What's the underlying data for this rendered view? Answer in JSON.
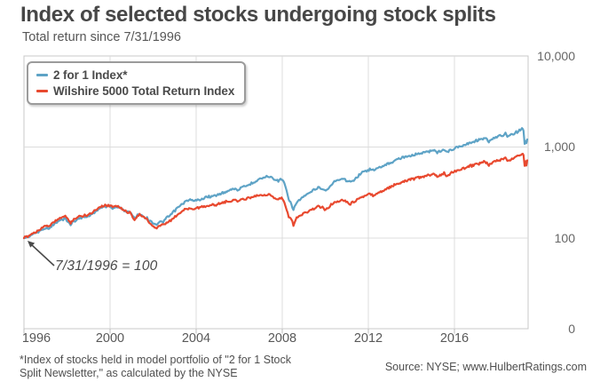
{
  "header": {
    "title": "Index of selected stocks undergoing stock splits",
    "subtitle": "Total return since 7/31/1996"
  },
  "legend": {
    "items": [
      {
        "label": "2 for 1 Index*",
        "color": "#5ea3c6"
      },
      {
        "label": "Wilshire 5000 Total Return Index",
        "color": "#e8492f"
      }
    ]
  },
  "annotation": {
    "text": "7/31/1996 = 100"
  },
  "footnote": {
    "line1": "*Index of stocks held in model portfolio of \"2 for 1 Stock",
    "line2": "Split Newsletter,\" as calculated by the NYSE"
  },
  "source": "Source: NYSE; www.HulbertRatings.com",
  "chart_data": {
    "type": "line",
    "title": "Index of selected stocks undergoing stock splits",
    "subtitle": "Total return since 7/31/1996",
    "base_note": "7/31/1996 = 100",
    "grid": true,
    "legend_position": "top-left",
    "x_axis": {
      "ticks": [
        1996,
        2000,
        2004,
        2008,
        2012,
        2016
      ],
      "tick_labels": [
        "1996",
        "2000",
        "2004",
        "2008",
        "2012",
        "2016"
      ],
      "start": 1996.58,
      "end": 2019.96
    },
    "y_axis": {
      "scale": "log",
      "tick_values": [
        10000,
        1000,
        100,
        0
      ],
      "tick_labels": [
        "10,000",
        "1,000",
        "100",
        "0"
      ],
      "position": "right"
    },
    "series": [
      {
        "name": "2 for 1 Index*",
        "color": "#5ea3c6",
        "points": [
          [
            1996.58,
            100
          ],
          [
            1996.75,
            103
          ],
          [
            1996.95,
            109
          ],
          [
            1997.15,
            114
          ],
          [
            1997.35,
            120
          ],
          [
            1997.55,
            130
          ],
          [
            1997.7,
            126
          ],
          [
            1997.9,
            138
          ],
          [
            1998.1,
            148
          ],
          [
            1998.3,
            158
          ],
          [
            1998.5,
            166
          ],
          [
            1998.63,
            150
          ],
          [
            1998.75,
            140
          ],
          [
            1998.9,
            154
          ],
          [
            1999.1,
            162
          ],
          [
            1999.3,
            168
          ],
          [
            1999.5,
            172
          ],
          [
            1999.7,
            180
          ],
          [
            1999.9,
            196
          ],
          [
            2000.1,
            212
          ],
          [
            2000.3,
            220
          ],
          [
            2000.5,
            226
          ],
          [
            2000.7,
            214
          ],
          [
            2000.9,
            218
          ],
          [
            2001.1,
            215
          ],
          [
            2001.3,
            198
          ],
          [
            2001.5,
            192
          ],
          [
            2001.72,
            165
          ],
          [
            2001.9,
            183
          ],
          [
            2002.05,
            180
          ],
          [
            2002.25,
            168
          ],
          [
            2002.45,
            155
          ],
          [
            2002.6,
            146
          ],
          [
            2002.75,
            143
          ],
          [
            2002.9,
            150
          ],
          [
            2003.05,
            153
          ],
          [
            2003.25,
            168
          ],
          [
            2003.45,
            185
          ],
          [
            2003.65,
            208
          ],
          [
            2003.85,
            228
          ],
          [
            2004.05,
            250
          ],
          [
            2004.25,
            262
          ],
          [
            2004.45,
            256
          ],
          [
            2004.65,
            262
          ],
          [
            2004.85,
            270
          ],
          [
            2005.05,
            280
          ],
          [
            2005.3,
            288
          ],
          [
            2005.55,
            296
          ],
          [
            2005.8,
            312
          ],
          [
            2006.05,
            332
          ],
          [
            2006.3,
            352
          ],
          [
            2006.5,
            340
          ],
          [
            2006.7,
            356
          ],
          [
            2006.9,
            372
          ],
          [
            2007.1,
            392
          ],
          [
            2007.3,
            420
          ],
          [
            2007.5,
            448
          ],
          [
            2007.7,
            462
          ],
          [
            2007.9,
            478
          ],
          [
            2008.1,
            465
          ],
          [
            2008.25,
            442
          ],
          [
            2008.4,
            430
          ],
          [
            2008.55,
            446
          ],
          [
            2008.68,
            400
          ],
          [
            2008.78,
            330
          ],
          [
            2008.88,
            262
          ],
          [
            2009.0,
            238
          ],
          [
            2009.1,
            206
          ],
          [
            2009.25,
            248
          ],
          [
            2009.45,
            272
          ],
          [
            2009.65,
            292
          ],
          [
            2009.85,
            315
          ],
          [
            2010.05,
            338
          ],
          [
            2010.25,
            362
          ],
          [
            2010.45,
            348
          ],
          [
            2010.6,
            332
          ],
          [
            2010.8,
            368
          ],
          [
            2011.0,
            415
          ],
          [
            2011.2,
            442
          ],
          [
            2011.4,
            455
          ],
          [
            2011.6,
            428
          ],
          [
            2011.75,
            408
          ],
          [
            2011.9,
            438
          ],
          [
            2012.1,
            480
          ],
          [
            2012.3,
            525
          ],
          [
            2012.5,
            555
          ],
          [
            2012.65,
            572
          ],
          [
            2012.8,
            558
          ],
          [
            2013.0,
            580
          ],
          [
            2013.2,
            612
          ],
          [
            2013.45,
            648
          ],
          [
            2013.7,
            688
          ],
          [
            2013.95,
            735
          ],
          [
            2014.2,
            778
          ],
          [
            2014.45,
            805
          ],
          [
            2014.7,
            822
          ],
          [
            2014.95,
            848
          ],
          [
            2015.2,
            878
          ],
          [
            2015.45,
            905
          ],
          [
            2015.65,
            925
          ],
          [
            2015.78,
            868
          ],
          [
            2015.95,
            902
          ],
          [
            2016.1,
            935
          ],
          [
            2016.25,
            885
          ],
          [
            2016.45,
            948
          ],
          [
            2016.65,
            985
          ],
          [
            2016.85,
            1025
          ],
          [
            2017.05,
            1070
          ],
          [
            2017.3,
            1115
          ],
          [
            2017.55,
            1165
          ],
          [
            2017.8,
            1222
          ],
          [
            2018.0,
            1268
          ],
          [
            2018.18,
            1135
          ],
          [
            2018.35,
            1225
          ],
          [
            2018.55,
            1282
          ],
          [
            2018.75,
            1335
          ],
          [
            2018.95,
            1392
          ],
          [
            2019.08,
            1312
          ],
          [
            2019.25,
            1372
          ],
          [
            2019.45,
            1455
          ],
          [
            2019.6,
            1525
          ],
          [
            2019.72,
            1582
          ],
          [
            2019.79,
            1520
          ],
          [
            2019.84,
            1068
          ],
          [
            2019.89,
            1160
          ],
          [
            2019.92,
            1085
          ],
          [
            2019.96,
            1215
          ]
        ]
      },
      {
        "name": "Wilshire 5000 Total Return Index",
        "color": "#e8492f",
        "points": [
          [
            1996.58,
            100
          ],
          [
            1996.75,
            105
          ],
          [
            1996.95,
            112
          ],
          [
            1997.15,
            118
          ],
          [
            1997.35,
            126
          ],
          [
            1997.55,
            138
          ],
          [
            1997.7,
            133
          ],
          [
            1997.9,
            146
          ],
          [
            1998.1,
            156
          ],
          [
            1998.3,
            168
          ],
          [
            1998.5,
            176
          ],
          [
            1998.63,
            158
          ],
          [
            1998.75,
            148
          ],
          [
            1998.9,
            163
          ],
          [
            1999.1,
            170
          ],
          [
            1999.3,
            175
          ],
          [
            1999.5,
            180
          ],
          [
            1999.7,
            188
          ],
          [
            1999.9,
            204
          ],
          [
            2000.1,
            220
          ],
          [
            2000.3,
            226
          ],
          [
            2000.5,
            231
          ],
          [
            2000.7,
            222
          ],
          [
            2000.9,
            228
          ],
          [
            2001.1,
            212
          ],
          [
            2001.3,
            196
          ],
          [
            2001.5,
            190
          ],
          [
            2001.72,
            160
          ],
          [
            2001.9,
            180
          ],
          [
            2002.05,
            175
          ],
          [
            2002.25,
            162
          ],
          [
            2002.45,
            146
          ],
          [
            2002.6,
            134
          ],
          [
            2002.75,
            128
          ],
          [
            2002.9,
            136
          ],
          [
            2003.05,
            138
          ],
          [
            2003.25,
            148
          ],
          [
            2003.45,
            160
          ],
          [
            2003.65,
            175
          ],
          [
            2003.85,
            190
          ],
          [
            2004.05,
            205
          ],
          [
            2004.25,
            215
          ],
          [
            2004.45,
            210
          ],
          [
            2004.65,
            216
          ],
          [
            2004.85,
            222
          ],
          [
            2005.05,
            226
          ],
          [
            2005.3,
            230
          ],
          [
            2005.55,
            235
          ],
          [
            2005.8,
            242
          ],
          [
            2006.05,
            252
          ],
          [
            2006.3,
            262
          ],
          [
            2006.5,
            256
          ],
          [
            2006.7,
            264
          ],
          [
            2006.9,
            272
          ],
          [
            2007.1,
            280
          ],
          [
            2007.3,
            288
          ],
          [
            2007.5,
            295
          ],
          [
            2007.7,
            298
          ],
          [
            2007.9,
            302
          ],
          [
            2008.1,
            290
          ],
          [
            2008.25,
            275
          ],
          [
            2008.4,
            268
          ],
          [
            2008.55,
            276
          ],
          [
            2008.68,
            248
          ],
          [
            2008.78,
            205
          ],
          [
            2008.88,
            172
          ],
          [
            2009.0,
            158
          ],
          [
            2009.1,
            140
          ],
          [
            2009.25,
            165
          ],
          [
            2009.45,
            180
          ],
          [
            2009.65,
            192
          ],
          [
            2009.85,
            202
          ],
          [
            2010.05,
            212
          ],
          [
            2010.25,
            224
          ],
          [
            2010.45,
            215
          ],
          [
            2010.6,
            205
          ],
          [
            2010.8,
            226
          ],
          [
            2011.0,
            248
          ],
          [
            2011.2,
            258
          ],
          [
            2011.4,
            264
          ],
          [
            2011.6,
            248
          ],
          [
            2011.75,
            236
          ],
          [
            2011.9,
            252
          ],
          [
            2012.1,
            268
          ],
          [
            2012.3,
            285
          ],
          [
            2012.5,
            296
          ],
          [
            2012.65,
            302
          ],
          [
            2012.8,
            296
          ],
          [
            2013.0,
            308
          ],
          [
            2013.2,
            325
          ],
          [
            2013.45,
            348
          ],
          [
            2013.7,
            372
          ],
          [
            2013.95,
            398
          ],
          [
            2014.2,
            420
          ],
          [
            2014.45,
            438
          ],
          [
            2014.7,
            450
          ],
          [
            2014.95,
            462
          ],
          [
            2015.2,
            480
          ],
          [
            2015.45,
            495
          ],
          [
            2015.65,
            505
          ],
          [
            2015.78,
            472
          ],
          [
            2015.95,
            492
          ],
          [
            2016.1,
            512
          ],
          [
            2016.25,
            482
          ],
          [
            2016.45,
            522
          ],
          [
            2016.65,
            545
          ],
          [
            2016.85,
            565
          ],
          [
            2017.05,
            592
          ],
          [
            2017.3,
            618
          ],
          [
            2017.55,
            645
          ],
          [
            2017.8,
            672
          ],
          [
            2018.0,
            700
          ],
          [
            2018.18,
            632
          ],
          [
            2018.35,
            678
          ],
          [
            2018.55,
            705
          ],
          [
            2018.75,
            728
          ],
          [
            2018.95,
            752
          ],
          [
            2019.08,
            710
          ],
          [
            2019.25,
            742
          ],
          [
            2019.45,
            790
          ],
          [
            2019.6,
            822
          ],
          [
            2019.72,
            852
          ],
          [
            2019.79,
            820
          ],
          [
            2019.84,
            615
          ],
          [
            2019.89,
            680
          ],
          [
            2019.92,
            635
          ],
          [
            2019.96,
            715
          ]
        ]
      }
    ]
  }
}
